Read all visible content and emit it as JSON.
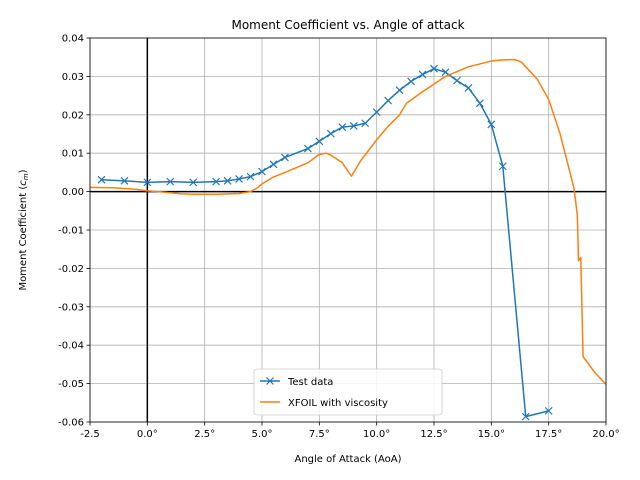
{
  "chart_data": {
    "type": "line",
    "title": "Moment Coefficient vs. Angle of attack",
    "xlabel": "Angle of Attack (AoA)",
    "ylabel_text": "Moment Coefficient (",
    "ylabel_symbol": "c",
    "ylabel_subscript": "m",
    "ylabel_close": ")",
    "xlim": [
      -2.5,
      20.0
    ],
    "ylim": [
      -0.06,
      0.04
    ],
    "x_ticks": [
      -2.5,
      0.0,
      2.5,
      5.0,
      7.5,
      10.0,
      12.5,
      15.0,
      17.5,
      20.0
    ],
    "x_tick_labels": [
      "-2.5",
      "0.0°",
      "2.5°",
      "5.0°",
      "7.5°",
      "10.0°",
      "12.5°",
      "15.0°",
      "17.5°",
      "20.0°"
    ],
    "y_ticks": [
      -0.06,
      -0.05,
      -0.04,
      -0.03,
      -0.02,
      -0.01,
      0.0,
      0.01,
      0.02,
      0.03,
      0.04
    ],
    "y_tick_labels": [
      "-0.06",
      "-0.05",
      "-0.04",
      "-0.03",
      "-0.02",
      "-0.01",
      "0.00",
      "0.01",
      "0.02",
      "0.03",
      "0.04"
    ],
    "grid": true,
    "legend_position": "lower-center",
    "reference_lines": [
      {
        "axis": "x",
        "value": 0
      },
      {
        "axis": "y",
        "value": 0
      }
    ],
    "series": [
      {
        "name": "Test data",
        "color": "#1f77b4",
        "marker": "x",
        "x": [
          -2,
          -1,
          0,
          1,
          2,
          3,
          3.5,
          4,
          4.5,
          5,
          5.5,
          6,
          7,
          7.5,
          8,
          8.5,
          9,
          9.5,
          10,
          10.5,
          11,
          11.5,
          12,
          12.5,
          13,
          13.5,
          14,
          14.5,
          15,
          15.5,
          16.5,
          17.5
        ],
        "y": [
          0.0031,
          0.0028,
          0.0024,
          0.0026,
          0.0024,
          0.0026,
          0.0028,
          0.0033,
          0.0039,
          0.0052,
          0.0071,
          0.0089,
          0.0112,
          0.0131,
          0.0151,
          0.0168,
          0.0171,
          0.0178,
          0.0207,
          0.0237,
          0.0264,
          0.0287,
          0.0305,
          0.032,
          0.0311,
          0.0289,
          0.027,
          0.023,
          0.0175,
          0.0066,
          -0.0586,
          -0.0571
        ]
      },
      {
        "name": "XFOIL with viscosity",
        "color": "#ff7f0e",
        "marker": "none",
        "x": [
          -2.5,
          -1.5,
          -0.5,
          0,
          0.5,
          1.0,
          1.5,
          2.0,
          3.0,
          4.0,
          4.5,
          4.8,
          5.0,
          5.5,
          6.0,
          7.0,
          7.5,
          7.8,
          8.0,
          8.5,
          8.9,
          9.3,
          10.0,
          10.5,
          11.0,
          11.3,
          12.0,
          13.0,
          14.0,
          15.0,
          15.5,
          16.0,
          16.3,
          17.0,
          17.5,
          18.0,
          18.3,
          18.6,
          18.75,
          18.8,
          18.9,
          19.0,
          19.5,
          20.0
        ],
        "y": [
          0.0011,
          0.001,
          0.0006,
          0.0002,
          0.0,
          -0.0003,
          -0.0006,
          -0.0007,
          -0.0007,
          -0.0005,
          0.0,
          0.001,
          0.002,
          0.0038,
          0.005,
          0.0075,
          0.0097,
          0.01,
          0.0095,
          0.0075,
          0.004,
          0.008,
          0.0135,
          0.017,
          0.02,
          0.023,
          0.026,
          0.03,
          0.0325,
          0.034,
          0.0343,
          0.0344,
          0.0338,
          0.0293,
          0.024,
          0.015,
          0.008,
          0.001,
          -0.006,
          -0.018,
          -0.0172,
          -0.043,
          -0.047,
          -0.0502
        ]
      }
    ]
  }
}
